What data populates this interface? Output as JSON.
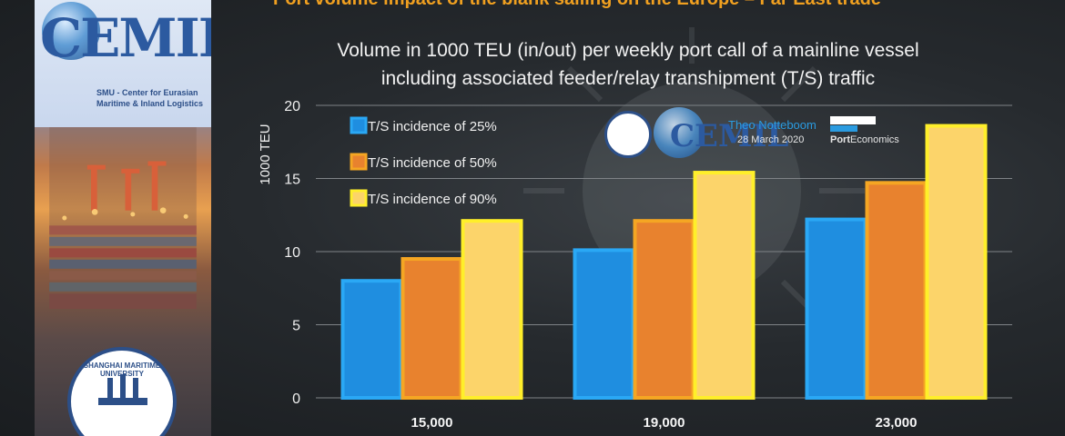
{
  "banner": {
    "logo": "CEMIL",
    "subtitle_line1": "SMU - Center for Eurasian",
    "subtitle_line2": "Maritime & Inland Logistics",
    "seal_text": "SHANGHAI MARITIME UNIVERSITY"
  },
  "header": {
    "cut_title": "Port volume impact of the blank sailing on the Europe – Far East trade"
  },
  "watermark": {
    "cemil": "CEMIL",
    "author": "Theo Notteboom",
    "date": "28 March 2020",
    "brand_port": "Port",
    "brand_economics": "Economics"
  },
  "chart_data": {
    "type": "bar",
    "title_line1": "Volume in 1000 TEU (in/out) per weekly port call of a mainline vessel",
    "title_line2": "including associated feeder/relay transhipment (T/S) traffic",
    "ylabel": "1000 TEU",
    "xlabel": "",
    "ylim": [
      0,
      20
    ],
    "yticks": [
      "0",
      "5",
      "10",
      "15",
      "20"
    ],
    "categories": [
      "15,000",
      "19,000",
      "23,000"
    ],
    "series": [
      {
        "name": "T/S incidence of 25%",
        "values": [
          8.0,
          10.1,
          12.2
        ],
        "color": "#1f8ee0",
        "edge": "#2aa8f5"
      },
      {
        "name": "T/S incidence of 50%",
        "values": [
          9.5,
          12.1,
          14.7
        ],
        "color": "#e8822e",
        "edge": "#f5a623"
      },
      {
        "name": "T/S incidence of 90%",
        "values": [
          12.1,
          15.4,
          18.6
        ],
        "color": "#fcd46a",
        "edge": "#ffef2a"
      }
    ],
    "grid": true,
    "legend": "top-left"
  }
}
